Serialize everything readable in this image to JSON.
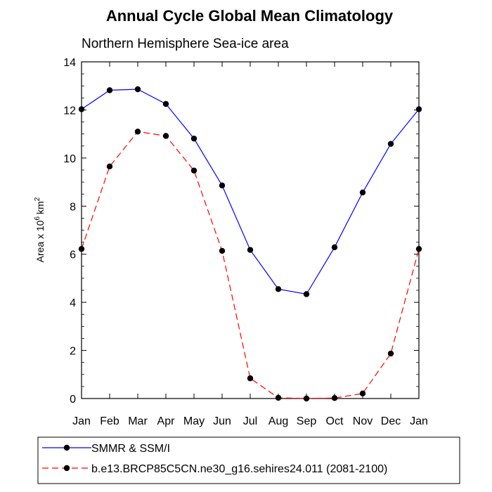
{
  "chart_data": {
    "type": "line",
    "title": "Annual Cycle Global Mean Climatology",
    "subtitle": "Northern Hemisphere Sea-ice area",
    "xlabel": "",
    "ylabel": "Area x 10",
    "ylabel_exponent": "6",
    "ylabel_unit": "km",
    "ylabel_unit_exponent": "2",
    "categories": [
      "Jan",
      "Feb",
      "Mar",
      "Apr",
      "May",
      "Jun",
      "Jul",
      "Aug",
      "Sep",
      "Oct",
      "Nov",
      "Dec",
      "Jan"
    ],
    "ylim": [
      0,
      14
    ],
    "yticks": [
      0,
      2,
      4,
      6,
      8,
      10,
      12,
      14
    ],
    "grid": false,
    "legend_position": "bottom",
    "series": [
      {
        "name": "SMMR & SSM/I",
        "color": "#0000ff",
        "dash": "solid",
        "marker": "filled-circle",
        "values": [
          12.03,
          12.82,
          12.86,
          12.25,
          10.81,
          8.86,
          6.18,
          4.55,
          4.34,
          6.29,
          8.57,
          10.59,
          12.03
        ]
      },
      {
        "name": "b.e13.BRCP85C5CN.ne30_g16.sehires24.011 (2081-2100)",
        "color": "#ff0000",
        "dash": "dashed",
        "marker": "filled-circle",
        "values": [
          6.22,
          9.65,
          11.1,
          10.92,
          9.48,
          6.14,
          0.84,
          0.03,
          0.0,
          0.02,
          0.21,
          1.87,
          6.22
        ]
      }
    ]
  }
}
